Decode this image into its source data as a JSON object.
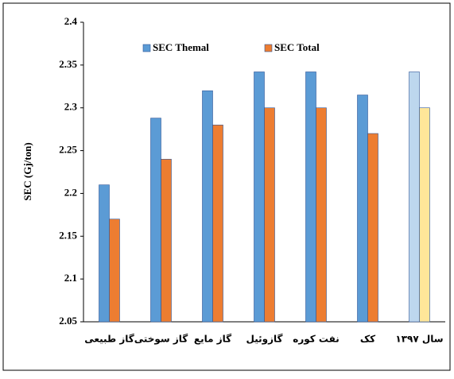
{
  "chart_data": {
    "type": "bar",
    "y_label": "SEC (Gj/ton)",
    "categories": [
      "گاز طبیعی",
      "گاز سوختی",
      "گاز مایع",
      "گازوئیل",
      "نفت کوره",
      "کک",
      "سال ۱۳۹۷"
    ],
    "series": [
      {
        "name": "SEC Themal",
        "color": "#5b9bd5",
        "colors": [
          "#5b9bd5",
          "#5b9bd5",
          "#5b9bd5",
          "#5b9bd5",
          "#5b9bd5",
          "#5b9bd5",
          "#bdd7ee"
        ],
        "values": [
          2.21,
          2.288,
          2.32,
          2.342,
          2.342,
          2.315,
          2.342
        ]
      },
      {
        "name": "SEC Total",
        "color": "#ed7d31",
        "colors": [
          "#ed7d31",
          "#ed7d31",
          "#ed7d31",
          "#ed7d31",
          "#ed7d31",
          "#ed7d31",
          "#ffe699"
        ],
        "values": [
          2.17,
          2.24,
          2.28,
          2.3,
          2.3,
          2.27,
          2.3
        ]
      }
    ],
    "ylim": [
      2.05,
      2.4
    ],
    "yticks": [
      2.05,
      2.1,
      2.15,
      2.2,
      2.25,
      2.3,
      2.35,
      2.4
    ],
    "grid": false
  }
}
